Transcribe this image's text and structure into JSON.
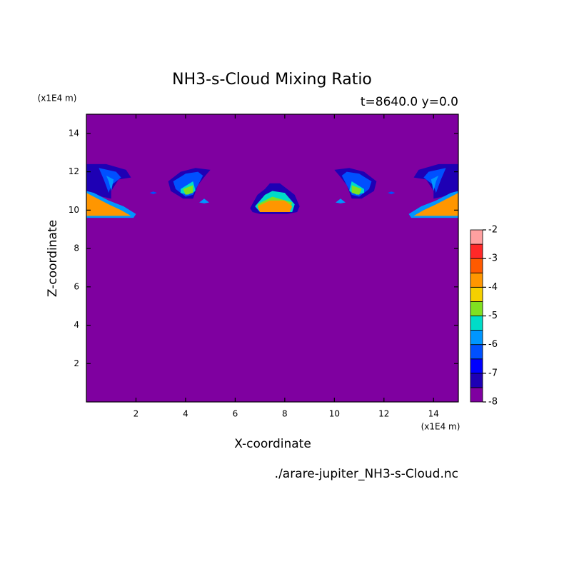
{
  "chart_data": {
    "type": "contour",
    "title": "NH3-s-Cloud Mixing Ratio",
    "subtitle": "t=8640.0 y=0.0",
    "x_label": "X-coordinate",
    "y_label": "Z-coordinate",
    "x_unit": "(x1E4 m)",
    "y_unit": "(x1E4 m)",
    "footer": "./arare-jupiter_NH3-s-Cloud.nc",
    "xlim": [
      0,
      15
    ],
    "ylim": [
      0,
      15
    ],
    "xticks": [
      2,
      4,
      6,
      8,
      10,
      12,
      14
    ],
    "yticks": [
      2,
      4,
      6,
      8,
      10,
      12,
      14
    ],
    "colorbar": {
      "levels": [
        -8,
        -7.5,
        -7,
        -6.5,
        -6,
        -5.5,
        -5,
        -4.5,
        -4,
        -3.5,
        -3,
        -2.5,
        -2
      ],
      "colors": [
        "#7f00a0",
        "#1e00b4",
        "#0000ff",
        "#0050ff",
        "#0096ff",
        "#00dcc8",
        "#80e020",
        "#f5d000",
        "#ff9600",
        "#ff5a00",
        "#ff2828",
        "#ffa0a0"
      ],
      "ticks": [
        -2,
        -3,
        -4,
        -5,
        -6,
        -7,
        -8
      ]
    },
    "contours": [
      {
        "level": -8,
        "x": [
          0,
          15,
          15,
          0
        ],
        "y": [
          0,
          0,
          15,
          15
        ]
      },
      {
        "level": -7.5,
        "x": [
          0,
          0.8,
          1.6,
          1.8,
          1.3,
          1.0,
          1.0,
          0.3,
          0
        ],
        "y": [
          12.4,
          12.4,
          12.1,
          11.7,
          11.6,
          11.0,
          10.6,
          10.8,
          11.0
        ]
      },
      {
        "level": -6.5,
        "x": [
          0.5,
          1.2,
          1.4,
          1.0,
          0.9,
          0.7
        ],
        "y": [
          12.2,
          12.0,
          11.7,
          11.3,
          10.9,
          11.6
        ]
      },
      {
        "level": -6,
        "x": [
          0.8,
          1.1,
          1.0,
          0.9
        ],
        "y": [
          11.8,
          11.6,
          11.0,
          11.5
        ]
      },
      {
        "level": -6,
        "x": [
          0,
          0.3,
          0.9,
          1.5,
          2.0,
          1.9,
          0
        ],
        "y": [
          11.0,
          10.9,
          10.5,
          10.2,
          9.8,
          9.6,
          9.6
        ]
      },
      {
        "level": -4,
        "x": [
          0,
          0.3,
          0.9,
          1.4,
          1.8,
          0
        ],
        "y": [
          10.9,
          10.7,
          10.3,
          10.0,
          9.7,
          9.7
        ]
      },
      {
        "level": -7.5,
        "x": [
          3.3,
          3.8,
          4.4,
          5.0,
          4.8,
          4.5,
          4.3,
          3.9,
          3.4
        ],
        "y": [
          11.5,
          12.0,
          12.2,
          12.1,
          11.8,
          11.3,
          10.6,
          10.6,
          11.0
        ]
      },
      {
        "level": -6.5,
        "x": [
          3.5,
          4.0,
          4.5,
          4.7,
          4.3,
          4.0,
          3.6
        ],
        "y": [
          11.5,
          11.9,
          12.0,
          11.8,
          10.8,
          10.7,
          11.1
        ]
      },
      {
        "level": -5.5,
        "x": [
          3.8,
          4.3,
          4.4,
          4.1,
          3.8
        ],
        "y": [
          11.1,
          11.5,
          11.0,
          10.8,
          10.9
        ]
      },
      {
        "level": -5,
        "x": [
          3.9,
          4.3,
          4.3,
          4.0
        ],
        "y": [
          11.1,
          11.3,
          10.9,
          10.8
        ]
      },
      {
        "level": -6.5,
        "x": [
          2.55,
          2.7,
          2.85,
          2.7
        ],
        "y": [
          10.9,
          10.97,
          10.9,
          10.83
        ]
      },
      {
        "level": -6,
        "x": [
          4.55,
          4.75,
          4.95,
          4.75
        ],
        "y": [
          10.4,
          10.6,
          10.4,
          10.35
        ]
      },
      {
        "level": -7.5,
        "x": [
          6.6,
          6.9,
          7.2,
          7.4,
          7.8,
          8.1,
          8.4,
          8.6,
          8.5,
          8.1,
          7.0,
          6.7
        ],
        "y": [
          10.1,
          10.8,
          11.1,
          11.4,
          11.4,
          11.1,
          10.8,
          10.2,
          9.9,
          9.8,
          9.8,
          9.9
        ]
      },
      {
        "level": -5.5,
        "x": [
          6.8,
          7.2,
          7.5,
          8.0,
          8.4,
          8.3,
          7.0
        ],
        "y": [
          10.2,
          10.8,
          11.0,
          10.9,
          10.3,
          9.9,
          9.9
        ]
      },
      {
        "level": -5,
        "x": [
          6.9,
          7.5,
          8.3,
          8.2,
          7.0
        ],
        "y": [
          10.3,
          10.7,
          10.4,
          10.0,
          10.0
        ]
      },
      {
        "level": -4,
        "x": [
          6.9,
          7.4,
          8.0,
          8.3,
          8.2,
          7.0
        ],
        "y": [
          10.2,
          10.5,
          10.5,
          10.2,
          9.9,
          9.9
        ]
      },
      {
        "level": -7.5,
        "x": [
          11.7,
          11.2,
          10.6,
          10.0,
          10.2,
          10.5,
          10.7,
          11.1,
          11.6
        ],
        "y": [
          11.5,
          12.0,
          12.2,
          12.1,
          11.8,
          11.3,
          10.6,
          10.6,
          11.0
        ]
      },
      {
        "level": -6.5,
        "x": [
          11.5,
          11.0,
          10.5,
          10.3,
          10.7,
          11.0,
          11.4
        ],
        "y": [
          11.5,
          11.9,
          12.0,
          11.8,
          10.8,
          10.7,
          11.1
        ]
      },
      {
        "level": -5.5,
        "x": [
          11.2,
          10.7,
          10.6,
          10.9,
          11.2
        ],
        "y": [
          11.1,
          11.5,
          11.0,
          10.8,
          10.9
        ]
      },
      {
        "level": -5,
        "x": [
          11.1,
          10.7,
          10.7,
          11.0
        ],
        "y": [
          11.1,
          11.3,
          10.9,
          10.8
        ]
      },
      {
        "level": -6.5,
        "x": [
          12.15,
          12.3,
          12.45,
          12.3
        ],
        "y": [
          10.9,
          10.97,
          10.9,
          10.83
        ]
      },
      {
        "level": -6,
        "x": [
          10.05,
          10.25,
          10.45,
          10.25
        ],
        "y": [
          10.4,
          10.6,
          10.4,
          10.35
        ]
      },
      {
        "level": -7.5,
        "x": [
          15,
          14.2,
          13.4,
          13.2,
          13.7,
          14.0,
          14.0,
          14.7,
          15
        ],
        "y": [
          12.4,
          12.4,
          12.1,
          11.7,
          11.6,
          11.0,
          10.6,
          10.8,
          11.0
        ]
      },
      {
        "level": -6.5,
        "x": [
          14.5,
          13.8,
          13.6,
          14.0,
          14.1,
          14.3
        ],
        "y": [
          12.2,
          12.0,
          11.7,
          11.3,
          10.9,
          11.6
        ]
      },
      {
        "level": -6,
        "x": [
          14.2,
          13.9,
          14.0,
          14.1
        ],
        "y": [
          11.8,
          11.6,
          11.0,
          11.5
        ]
      },
      {
        "level": -6,
        "x": [
          15,
          14.7,
          14.1,
          13.5,
          13.0,
          13.1,
          15
        ],
        "y": [
          11.0,
          10.9,
          10.5,
          10.2,
          9.8,
          9.6,
          9.6
        ]
      },
      {
        "level": -4,
        "x": [
          15,
          14.7,
          14.1,
          13.6,
          13.2,
          15
        ],
        "y": [
          10.9,
          10.7,
          10.3,
          10.0,
          9.7,
          9.7
        ]
      }
    ]
  }
}
